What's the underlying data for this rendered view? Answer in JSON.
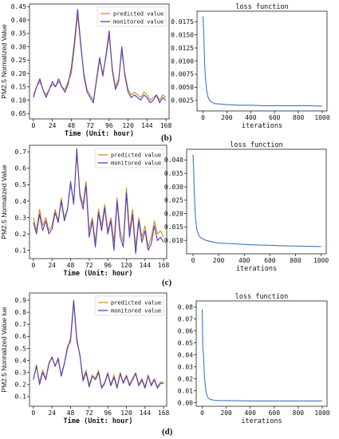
{
  "row_labels": [
    "(b)",
    "(c)",
    "(d)"
  ],
  "colors": {
    "predicted": "#d98a1c",
    "monitored": "#4b3ec8",
    "loss": "#3f78bf"
  },
  "chart_data": [
    {
      "type": "line",
      "panel": "b-left",
      "xlabel": "Time (Unit: hour)",
      "ylabel": "PM2.5 Normalized Value",
      "xlim": [
        -5,
        172
      ],
      "ylim": [
        0.03,
        0.46
      ],
      "xticks": [
        0,
        24,
        48,
        72,
        96,
        120,
        144,
        168
      ],
      "yticks": [
        0.05,
        0.1,
        0.15,
        0.2,
        0.25,
        0.3,
        0.35,
        0.4,
        0.45
      ],
      "ytick_labels": [
        "0.05",
        "0.10",
        "0.15",
        "0.20",
        "0.25",
        "0.30",
        "0.35",
        "0.40",
        "0.45"
      ],
      "legend": "top-right",
      "series": [
        {
          "name": "predicted value",
          "color": "#d98a1c",
          "x": [
            0,
            4,
            8,
            12,
            16,
            20,
            24,
            28,
            32,
            36,
            40,
            44,
            48,
            52,
            56,
            60,
            64,
            68,
            72,
            76,
            80,
            84,
            88,
            92,
            96,
            100,
            104,
            108,
            112,
            116,
            120,
            124,
            128,
            132,
            136,
            140,
            144,
            148,
            152,
            156,
            160,
            164,
            168
          ],
          "y": [
            0.12,
            0.15,
            0.17,
            0.14,
            0.12,
            0.14,
            0.16,
            0.15,
            0.17,
            0.15,
            0.14,
            0.17,
            0.2,
            0.3,
            0.42,
            0.3,
            0.2,
            0.14,
            0.12,
            0.1,
            0.17,
            0.25,
            0.2,
            0.26,
            0.34,
            0.22,
            0.15,
            0.18,
            0.28,
            0.2,
            0.14,
            0.12,
            0.13,
            0.12,
            0.11,
            0.13,
            0.12,
            0.1,
            0.11,
            0.12,
            0.1,
            0.12,
            0.11
          ]
        },
        {
          "name": "monitored value",
          "color": "#4b3ec8",
          "x": [
            0,
            4,
            8,
            12,
            16,
            20,
            24,
            28,
            32,
            36,
            40,
            44,
            48,
            52,
            56,
            60,
            64,
            68,
            72,
            76,
            80,
            84,
            88,
            92,
            96,
            100,
            104,
            108,
            112,
            116,
            120,
            124,
            128,
            132,
            136,
            140,
            144,
            148,
            152,
            156,
            160,
            164,
            168
          ],
          "y": [
            0.11,
            0.15,
            0.18,
            0.14,
            0.11,
            0.14,
            0.17,
            0.15,
            0.18,
            0.15,
            0.13,
            0.16,
            0.22,
            0.32,
            0.44,
            0.31,
            0.19,
            0.13,
            0.11,
            0.09,
            0.18,
            0.26,
            0.19,
            0.27,
            0.36,
            0.21,
            0.14,
            0.17,
            0.3,
            0.19,
            0.13,
            0.11,
            0.12,
            0.11,
            0.1,
            0.12,
            0.11,
            0.09,
            0.1,
            0.12,
            0.09,
            0.11,
            0.1
          ]
        }
      ]
    },
    {
      "type": "line",
      "panel": "b-right",
      "title": "loss function",
      "xlabel": "iterations",
      "ylabel": "",
      "xlim": [
        -50,
        1040
      ],
      "ylim": [
        0.0005,
        0.0195
      ],
      "xticks": [
        0,
        200,
        400,
        600,
        800,
        1000
      ],
      "yticks": [
        0.0025,
        0.005,
        0.0075,
        0.01,
        0.0125,
        0.015,
        0.0175
      ],
      "ytick_labels": [
        "0.0025",
        "0.0050",
        "0.0075",
        "0.0100",
        "0.0125",
        "0.0150",
        "0.0175"
      ],
      "series": [
        {
          "color": "#3f78bf",
          "x": [
            0,
            5,
            10,
            15,
            20,
            30,
            40,
            50,
            60,
            80,
            100,
            150,
            200,
            300,
            400,
            500,
            600,
            700,
            800,
            900,
            1000
          ],
          "y": [
            0.0185,
            0.016,
            0.0125,
            0.009,
            0.007,
            0.0045,
            0.0033,
            0.0027,
            0.0024,
            0.0021,
            0.0019,
            0.0018,
            0.0017,
            0.0016,
            0.0016,
            0.0015,
            0.0015,
            0.0015,
            0.0015,
            0.0015,
            0.0014
          ]
        }
      ]
    },
    {
      "type": "line",
      "panel": "c-left",
      "xlabel": "Time (Unit: hour)",
      "ylabel": "PM2.5 Normalized Value",
      "xlim": [
        -5,
        172
      ],
      "ylim": [
        0.05,
        0.74
      ],
      "xticks": [
        0,
        24,
        48,
        72,
        96,
        120,
        144,
        168
      ],
      "yticks": [
        0.1,
        0.2,
        0.3,
        0.4,
        0.5,
        0.6,
        0.7
      ],
      "ytick_labels": [
        "0.1",
        "0.2",
        "0.3",
        "0.4",
        "0.5",
        "0.6",
        "0.7"
      ],
      "legend": "top-right",
      "series": [
        {
          "name": "predicted value",
          "color": "#d98a1c",
          "x": [
            0,
            4,
            8,
            12,
            16,
            20,
            24,
            28,
            32,
            36,
            40,
            44,
            48,
            52,
            56,
            60,
            64,
            68,
            72,
            76,
            80,
            84,
            88,
            92,
            96,
            100,
            104,
            108,
            112,
            116,
            120,
            124,
            128,
            132,
            136,
            140,
            144,
            148,
            152,
            156,
            160,
            164,
            168
          ],
          "y": [
            0.3,
            0.22,
            0.35,
            0.25,
            0.3,
            0.22,
            0.25,
            0.35,
            0.28,
            0.42,
            0.3,
            0.35,
            0.5,
            0.4,
            0.68,
            0.45,
            0.38,
            0.52,
            0.22,
            0.3,
            0.15,
            0.35,
            0.25,
            0.38,
            0.22,
            0.3,
            0.15,
            0.42,
            0.22,
            0.15,
            0.48,
            0.22,
            0.35,
            0.12,
            0.3,
            0.18,
            0.25,
            0.12,
            0.18,
            0.28,
            0.2,
            0.22,
            0.18
          ]
        },
        {
          "name": "monitored value",
          "color": "#4b3ec8",
          "x": [
            0,
            4,
            8,
            12,
            16,
            20,
            24,
            28,
            32,
            36,
            40,
            44,
            48,
            52,
            56,
            60,
            64,
            68,
            72,
            76,
            80,
            84,
            88,
            92,
            96,
            100,
            104,
            108,
            112,
            116,
            120,
            124,
            128,
            132,
            136,
            140,
            144,
            148,
            152,
            156,
            160,
            164,
            168
          ],
          "y": [
            0.27,
            0.2,
            0.32,
            0.22,
            0.28,
            0.2,
            0.23,
            0.33,
            0.27,
            0.4,
            0.28,
            0.35,
            0.52,
            0.38,
            0.72,
            0.43,
            0.35,
            0.5,
            0.18,
            0.28,
            0.12,
            0.33,
            0.22,
            0.36,
            0.2,
            0.28,
            0.1,
            0.4,
            0.18,
            0.12,
            0.45,
            0.18,
            0.32,
            0.08,
            0.28,
            0.15,
            0.22,
            0.1,
            0.14,
            0.25,
            0.16,
            0.18,
            0.15
          ]
        }
      ]
    },
    {
      "type": "line",
      "panel": "c-right",
      "title": "loss function",
      "xlabel": "iterations",
      "ylabel": "",
      "xlim": [
        -50,
        1040
      ],
      "ylim": [
        0.005,
        0.044
      ],
      "xticks": [
        0,
        200,
        400,
        600,
        800,
        1000
      ],
      "yticks": [
        0.01,
        0.015,
        0.02,
        0.025,
        0.03,
        0.035,
        0.04
      ],
      "ytick_labels": [
        "0.010",
        "0.015",
        "0.020",
        "0.025",
        "0.030",
        "0.035",
        "0.040"
      ],
      "series": [
        {
          "color": "#3f78bf",
          "x": [
            0,
            5,
            10,
            15,
            20,
            30,
            40,
            50,
            60,
            80,
            100,
            150,
            200,
            300,
            400,
            500,
            600,
            700,
            800,
            900,
            1000
          ],
          "y": [
            0.042,
            0.036,
            0.028,
            0.022,
            0.018,
            0.014,
            0.0125,
            0.0115,
            0.011,
            0.0105,
            0.01,
            0.0095,
            0.009,
            0.0088,
            0.0085,
            0.0083,
            0.0082,
            0.008,
            0.0079,
            0.0078,
            0.0077
          ]
        }
      ]
    },
    {
      "type": "line",
      "panel": "d-left",
      "xlabel": "Time (Unit: hour)",
      "ylabel": "PM2.5 Normalized Value lue",
      "xlim": [
        -5,
        172
      ],
      "ylim": [
        0.02,
        0.96
      ],
      "xticks": [
        0,
        24,
        48,
        72,
        96,
        120,
        144,
        168
      ],
      "yticks": [
        0.1,
        0.2,
        0.3,
        0.4,
        0.5,
        0.6,
        0.7,
        0.8,
        0.9
      ],
      "ytick_labels": [
        "0.1",
        "0.2",
        "0.3",
        "0.4",
        "0.5",
        "0.6",
        "0.7",
        "0.8",
        "0.9"
      ],
      "legend": "top-right",
      "series": [
        {
          "name": "predicted value",
          "color": "#d98a1c",
          "x": [
            0,
            4,
            8,
            12,
            16,
            20,
            24,
            28,
            32,
            36,
            40,
            44,
            48,
            52,
            56,
            60,
            64,
            68,
            72,
            76,
            80,
            84,
            88,
            92,
            96,
            100,
            104,
            108,
            112,
            116,
            120,
            124,
            128,
            132,
            136,
            140,
            144,
            148,
            152,
            156,
            160,
            164,
            168
          ],
          "y": [
            0.25,
            0.35,
            0.22,
            0.32,
            0.25,
            0.38,
            0.42,
            0.36,
            0.4,
            0.28,
            0.38,
            0.52,
            0.55,
            0.88,
            0.55,
            0.45,
            0.25,
            0.32,
            0.2,
            0.28,
            0.25,
            0.32,
            0.18,
            0.22,
            0.3,
            0.2,
            0.28,
            0.18,
            0.3,
            0.22,
            0.28,
            0.2,
            0.25,
            0.3,
            0.2,
            0.25,
            0.18,
            0.28,
            0.2,
            0.25,
            0.18,
            0.22,
            0.22
          ]
        },
        {
          "name": "monitored value",
          "color": "#4b3ec8",
          "x": [
            0,
            4,
            8,
            12,
            16,
            20,
            24,
            28,
            32,
            36,
            40,
            44,
            48,
            52,
            56,
            60,
            64,
            68,
            72,
            76,
            80,
            84,
            88,
            92,
            96,
            100,
            104,
            108,
            112,
            116,
            120,
            124,
            128,
            132,
            136,
            140,
            144,
            148,
            152,
            156,
            160,
            164,
            168
          ],
          "y": [
            0.24,
            0.36,
            0.2,
            0.3,
            0.24,
            0.37,
            0.43,
            0.35,
            0.42,
            0.27,
            0.37,
            0.5,
            0.58,
            0.9,
            0.58,
            0.44,
            0.23,
            0.3,
            0.18,
            0.27,
            0.24,
            0.3,
            0.17,
            0.21,
            0.29,
            0.19,
            0.26,
            0.17,
            0.29,
            0.21,
            0.27,
            0.19,
            0.24,
            0.29,
            0.19,
            0.24,
            0.17,
            0.27,
            0.19,
            0.24,
            0.17,
            0.21,
            0.21
          ]
        }
      ]
    },
    {
      "type": "line",
      "panel": "d-right",
      "title": "loss function",
      "xlabel": "iterations",
      "ylabel": "",
      "xlim": [
        -50,
        1040
      ],
      "ylim": [
        -0.003,
        0.085
      ],
      "xticks": [
        0,
        200,
        400,
        600,
        800,
        1000
      ],
      "yticks": [
        0.0,
        0.01,
        0.02,
        0.03,
        0.04,
        0.05,
        0.06,
        0.07,
        0.08
      ],
      "ytick_labels": [
        "0.00",
        "0.01",
        "0.02",
        "0.03",
        "0.04",
        "0.05",
        "0.06",
        "0.07",
        "0.08"
      ],
      "series": [
        {
          "color": "#3f78bf",
          "x": [
            0,
            5,
            10,
            15,
            20,
            30,
            40,
            50,
            60,
            80,
            100,
            150,
            200,
            300,
            400,
            500,
            600,
            700,
            800,
            900,
            1000
          ],
          "y": [
            0.078,
            0.045,
            0.042,
            0.03,
            0.02,
            0.01,
            0.006,
            0.004,
            0.003,
            0.0025,
            0.002,
            0.0018,
            0.0017,
            0.0016,
            0.0015,
            0.0015,
            0.0015,
            0.0015,
            0.0015,
            0.0015,
            0.0015
          ]
        }
      ]
    }
  ]
}
